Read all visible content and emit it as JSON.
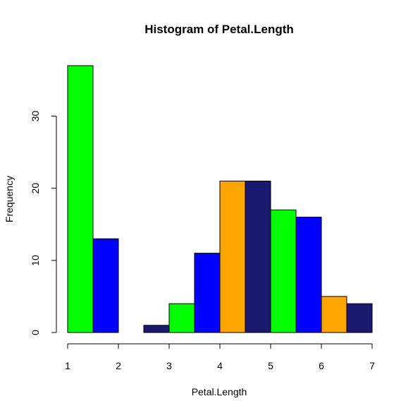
{
  "chart_data": {
    "type": "bar",
    "title": "Histogram of Petal.Length",
    "xlabel": "Petal.Length",
    "ylabel": "Frequency",
    "xlim": [
      1,
      7
    ],
    "ylim": [
      0,
      37
    ],
    "x_ticks": [
      "1",
      "2",
      "3",
      "4",
      "5",
      "6",
      "7"
    ],
    "y_ticks": [
      "0",
      "10",
      "20",
      "30"
    ],
    "bins": [
      {
        "start": 1.0,
        "end": 1.5,
        "count": 37,
        "color": "#00ff00"
      },
      {
        "start": 1.5,
        "end": 2.0,
        "count": 13,
        "color": "#0000ff"
      },
      {
        "start": 2.0,
        "end": 2.5,
        "count": 0,
        "color": "#ffa500"
      },
      {
        "start": 2.5,
        "end": 3.0,
        "count": 1,
        "color": "#191970"
      },
      {
        "start": 3.0,
        "end": 3.5,
        "count": 4,
        "color": "#00ff00"
      },
      {
        "start": 3.5,
        "end": 4.0,
        "count": 11,
        "color": "#0000ff"
      },
      {
        "start": 4.0,
        "end": 4.5,
        "count": 21,
        "color": "#ffa500"
      },
      {
        "start": 4.5,
        "end": 5.0,
        "count": 21,
        "color": "#191970"
      },
      {
        "start": 5.0,
        "end": 5.5,
        "count": 17,
        "color": "#00ff00"
      },
      {
        "start": 5.5,
        "end": 6.0,
        "count": 16,
        "color": "#0000ff"
      },
      {
        "start": 6.0,
        "end": 6.5,
        "count": 5,
        "color": "#ffa500"
      },
      {
        "start": 6.5,
        "end": 7.0,
        "count": 4,
        "color": "#191970"
      }
    ]
  }
}
